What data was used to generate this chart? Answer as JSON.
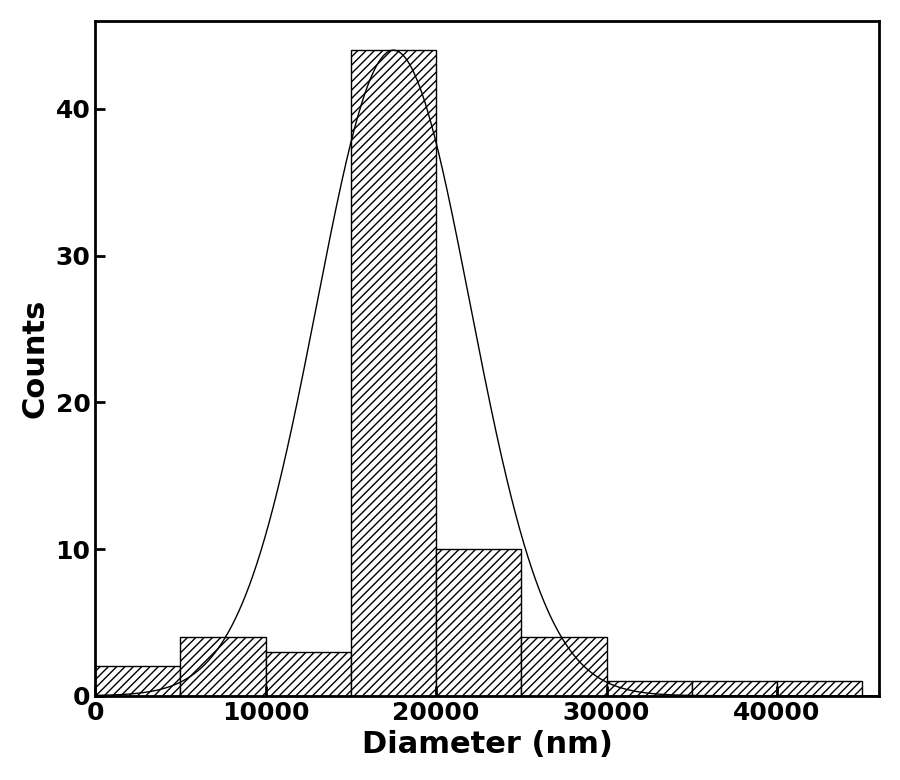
{
  "title": "",
  "xlabel": "Diameter (nm)",
  "ylabel": "Counts",
  "bar_edges": [
    0,
    5000,
    10000,
    15000,
    20000,
    25000,
    30000,
    35000,
    40000,
    45000
  ],
  "bar_heights": [
    2,
    4,
    3,
    44,
    10,
    4,
    1,
    1,
    1
  ],
  "xlim": [
    0,
    46000
  ],
  "ylim": [
    0,
    46
  ],
  "yticks": [
    0,
    10,
    20,
    30,
    40
  ],
  "xticks": [
    0,
    10000,
    20000,
    30000,
    40000
  ],
  "gaussian_mean": 17500,
  "gaussian_std": 4500,
  "gaussian_amplitude": 44,
  "hatch_pattern": "////",
  "bar_facecolor": "white",
  "bar_edgecolor": "black",
  "line_color": "black",
  "background_color": "white",
  "xlabel_fontsize": 22,
  "ylabel_fontsize": 22,
  "tick_fontsize": 18,
  "axis_linewidth": 2.0,
  "figsize": [
    9.0,
    7.8
  ],
  "dpi": 100
}
